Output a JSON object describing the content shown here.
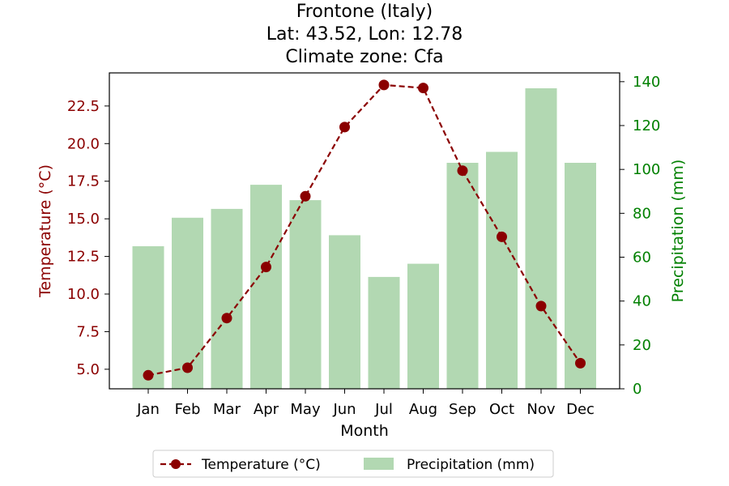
{
  "chart_data": {
    "type": "bar+line",
    "title_lines": [
      "Frontone (Italy)",
      "Lat: 43.52, Lon: 12.78",
      "Climate zone: Cfa"
    ],
    "xlabel": "Month",
    "ylabel_left": "Temperature (°C)",
    "ylabel_right": "Precipitation (mm)",
    "categories": [
      "Jan",
      "Feb",
      "Mar",
      "Apr",
      "May",
      "Jun",
      "Jul",
      "Aug",
      "Sep",
      "Oct",
      "Nov",
      "Dec"
    ],
    "series": [
      {
        "name": "Temperature (°C)",
        "type": "line",
        "axis": "left",
        "color": "#8b0000",
        "values": [
          4.6,
          5.1,
          8.4,
          11.8,
          16.5,
          21.1,
          23.9,
          23.7,
          18.2,
          13.8,
          9.2,
          5.4
        ]
      },
      {
        "name": "Precipitation (mm)",
        "type": "bar",
        "axis": "right",
        "color": "#b2d8b2",
        "values": [
          65,
          78,
          82,
          93,
          86,
          70,
          51,
          57,
          103,
          108,
          137,
          103
        ]
      }
    ],
    "y_left": {
      "range": [
        3.7,
        24.7
      ],
      "ticks": [
        "5.0",
        "7.5",
        "10.0",
        "12.5",
        "15.0",
        "17.5",
        "20.0",
        "22.5"
      ],
      "color": "#8b0000"
    },
    "y_right": {
      "range": [
        0,
        144
      ],
      "ticks": [
        "0",
        "20",
        "40",
        "60",
        "80",
        "100",
        "120",
        "140"
      ],
      "color": "#008000"
    },
    "grid": false,
    "legend_position": "bottom-center"
  }
}
